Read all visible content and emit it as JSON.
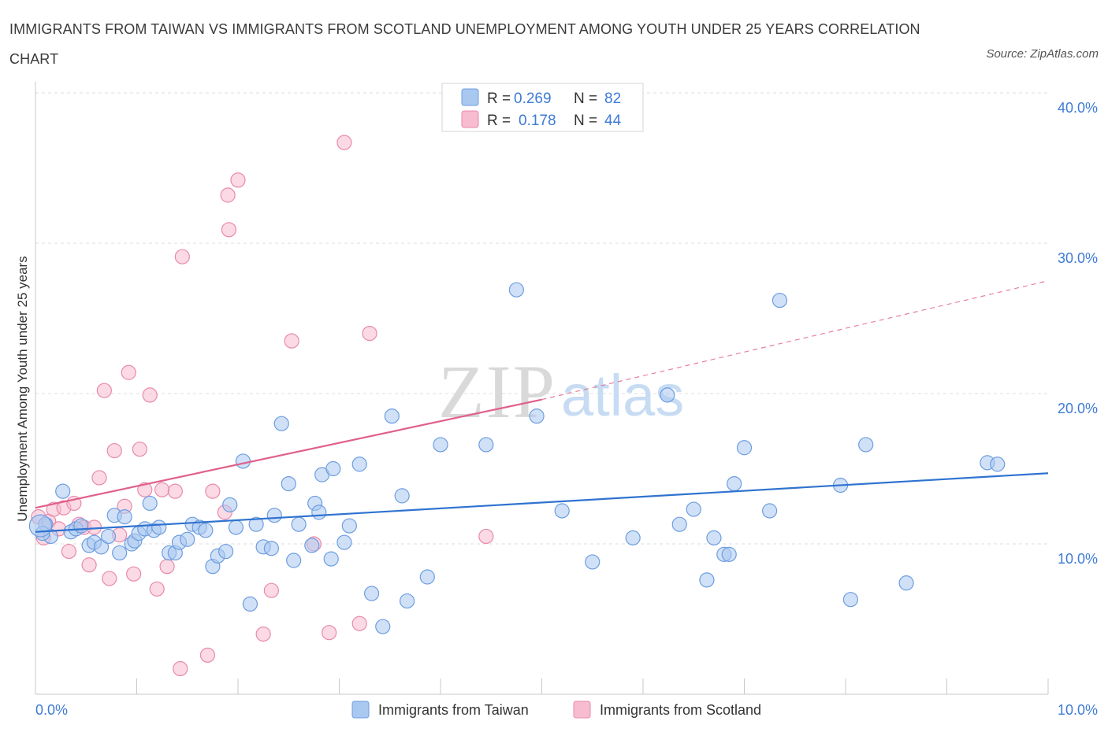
{
  "title": "IMMIGRANTS FROM TAIWAN VS IMMIGRANTS FROM SCOTLAND UNEMPLOYMENT AMONG YOUTH UNDER 25 YEARS CORRELATION CHART",
  "source": "Source: ZipAtlas.com",
  "colors": {
    "taiwan_fill": "#a9c8f0",
    "taiwan_stroke": "#6d9de0",
    "taiwan_line": "#2f73d0",
    "scotland_fill": "#f7bcd0",
    "scotland_stroke": "#e88aaa",
    "scotland_line": "#e0608a",
    "value_text": "#3d7bd6",
    "grid": "#dddddd"
  },
  "legend": {
    "taiwan": {
      "r_label": "R =",
      "r_value": "0.269",
      "n_label": "N =",
      "n_value": "82"
    },
    "scotland": {
      "r_label": "R =",
      "r_value": "0.178",
      "n_label": "N =",
      "n_value": "44"
    }
  },
  "chart_data": {
    "type": "scatter",
    "xlabel": "",
    "ylabel": "Unemployment Among Youth under 25 years",
    "xlim": [
      0,
      10
    ],
    "ylim": [
      0,
      40
    ],
    "x_tick_labels": [
      {
        "value": 0,
        "label": "0.0%"
      },
      {
        "value": 10,
        "label": "10.0%"
      }
    ],
    "y_tick_labels": [
      {
        "value": 10,
        "label": "10.0%"
      },
      {
        "value": 20,
        "label": "20.0%"
      },
      {
        "value": 30,
        "label": "30.0%"
      },
      {
        "value": 40,
        "label": "40.0%"
      }
    ],
    "watermark": {
      "zip": "ZIP",
      "atlas": "atlas"
    },
    "series": [
      {
        "name": "Immigrants from Taiwan",
        "key": "taiwan",
        "points": [
          [
            0.1,
            11.3
          ],
          [
            0.15,
            10.5
          ],
          [
            0.27,
            13.5
          ],
          [
            0.35,
            10.8
          ],
          [
            0.4,
            11.0
          ],
          [
            0.45,
            11.2
          ],
          [
            0.53,
            9.9
          ],
          [
            0.58,
            10.1
          ],
          [
            0.65,
            9.8
          ],
          [
            0.72,
            10.5
          ],
          [
            0.78,
            11.9
          ],
          [
            0.83,
            9.4
          ],
          [
            0.88,
            11.8
          ],
          [
            0.95,
            10.0
          ],
          [
            0.98,
            10.2
          ],
          [
            1.02,
            10.7
          ],
          [
            1.08,
            11.0
          ],
          [
            1.13,
            12.7
          ],
          [
            1.17,
            10.9
          ],
          [
            1.22,
            11.1
          ],
          [
            1.32,
            9.4
          ],
          [
            1.38,
            9.4
          ],
          [
            1.42,
            10.1
          ],
          [
            1.5,
            10.3
          ],
          [
            1.55,
            11.3
          ],
          [
            1.62,
            11.1
          ],
          [
            1.68,
            10.9
          ],
          [
            1.75,
            8.5
          ],
          [
            1.8,
            9.2
          ],
          [
            1.88,
            9.5
          ],
          [
            1.92,
            12.6
          ],
          [
            1.98,
            11.1
          ],
          [
            2.05,
            15.5
          ],
          [
            2.12,
            6.0
          ],
          [
            2.18,
            11.3
          ],
          [
            2.25,
            9.8
          ],
          [
            2.33,
            9.7
          ],
          [
            2.36,
            11.9
          ],
          [
            2.43,
            18.0
          ],
          [
            2.5,
            14.0
          ],
          [
            2.55,
            8.9
          ],
          [
            2.6,
            11.3
          ],
          [
            2.73,
            9.9
          ],
          [
            2.76,
            12.7
          ],
          [
            2.8,
            12.1
          ],
          [
            2.83,
            14.6
          ],
          [
            2.92,
            9.0
          ],
          [
            2.94,
            15.0
          ],
          [
            3.05,
            10.1
          ],
          [
            3.1,
            11.2
          ],
          [
            3.2,
            15.3
          ],
          [
            3.32,
            6.7
          ],
          [
            3.43,
            4.5
          ],
          [
            3.52,
            18.5
          ],
          [
            3.62,
            13.2
          ],
          [
            3.67,
            6.2
          ],
          [
            3.87,
            7.8
          ],
          [
            4.0,
            16.6
          ],
          [
            4.45,
            16.6
          ],
          [
            4.75,
            26.9
          ],
          [
            4.95,
            18.5
          ],
          [
            5.2,
            12.2
          ],
          [
            5.5,
            8.8
          ],
          [
            5.9,
            10.4
          ],
          [
            6.24,
            19.9
          ],
          [
            6.36,
            11.3
          ],
          [
            6.5,
            12.3
          ],
          [
            6.63,
            7.6
          ],
          [
            6.7,
            10.4
          ],
          [
            6.8,
            9.3
          ],
          [
            6.85,
            9.3
          ],
          [
            6.9,
            14.0
          ],
          [
            7.0,
            16.4
          ],
          [
            7.25,
            12.2
          ],
          [
            7.35,
            26.2
          ],
          [
            7.95,
            13.9
          ],
          [
            8.05,
            6.3
          ],
          [
            8.2,
            16.6
          ],
          [
            8.6,
            7.4
          ],
          [
            9.4,
            15.4
          ],
          [
            9.5,
            15.3
          ],
          [
            0.07,
            10.7
          ]
        ],
        "trend": {
          "x0": 0,
          "y0": 10.8,
          "x1": 10,
          "y1": 14.7
        }
      },
      {
        "name": "Immigrants from Scotland",
        "key": "scotland",
        "points": [
          [
            0.03,
            11.8
          ],
          [
            0.08,
            10.4
          ],
          [
            0.13,
            11.5
          ],
          [
            0.18,
            12.3
          ],
          [
            0.23,
            11.0
          ],
          [
            0.28,
            12.4
          ],
          [
            0.33,
            9.5
          ],
          [
            0.38,
            12.7
          ],
          [
            0.43,
            11.3
          ],
          [
            0.48,
            11.1
          ],
          [
            0.53,
            8.6
          ],
          [
            0.58,
            11.1
          ],
          [
            0.63,
            14.4
          ],
          [
            0.68,
            20.2
          ],
          [
            0.73,
            7.7
          ],
          [
            0.78,
            16.2
          ],
          [
            0.83,
            10.6
          ],
          [
            0.88,
            12.5
          ],
          [
            0.92,
            21.4
          ],
          [
            0.97,
            8.0
          ],
          [
            1.03,
            16.3
          ],
          [
            1.08,
            13.6
          ],
          [
            1.13,
            19.9
          ],
          [
            1.2,
            7.0
          ],
          [
            1.25,
            13.6
          ],
          [
            1.3,
            8.5
          ],
          [
            1.38,
            13.5
          ],
          [
            1.43,
            1.7
          ],
          [
            1.45,
            29.1
          ],
          [
            1.7,
            2.6
          ],
          [
            1.75,
            13.5
          ],
          [
            1.87,
            12.1
          ],
          [
            1.9,
            33.2
          ],
          [
            1.91,
            30.9
          ],
          [
            2.0,
            34.2
          ],
          [
            2.25,
            4.0
          ],
          [
            2.33,
            6.9
          ],
          [
            2.53,
            23.5
          ],
          [
            2.75,
            10.0
          ],
          [
            2.9,
            4.1
          ],
          [
            3.05,
            36.7
          ],
          [
            3.2,
            4.7
          ],
          [
            3.3,
            24.0
          ],
          [
            4.45,
            10.5
          ]
        ],
        "trend": {
          "x0": 0,
          "y0": 12.4,
          "x1": 5.0,
          "y1": 19.6,
          "dash_to_x": 10.0,
          "dash_to_y": 27.5
        }
      }
    ]
  }
}
